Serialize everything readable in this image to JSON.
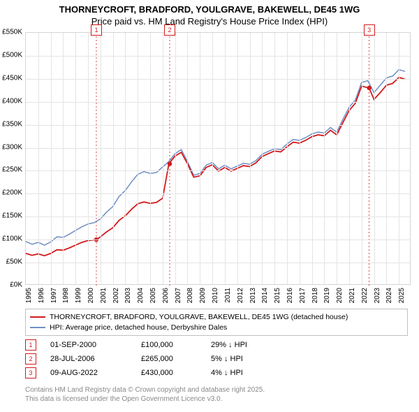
{
  "title_line1": "THORNEYCROFT, BRADFORD, YOULGRAVE, BAKEWELL, DE45 1WG",
  "title_line2": "Price paid vs. HM Land Registry's House Price Index (HPI)",
  "chart": {
    "type": "line",
    "background_color": "#ffffff",
    "grid_color": "#e4e4e4",
    "border_color": "#d4d4d4",
    "xlim": [
      1995,
      2026
    ],
    "ylim": [
      0,
      550
    ],
    "ytick_step": 50,
    "ytick_format": "£{v}K",
    "xticks": [
      1995,
      1996,
      1997,
      1998,
      1999,
      2000,
      2001,
      2002,
      2003,
      2004,
      2005,
      2006,
      2007,
      2008,
      2009,
      2010,
      2011,
      2012,
      2013,
      2014,
      2015,
      2016,
      2017,
      2018,
      2019,
      2020,
      2021,
      2022,
      2023,
      2024,
      2025
    ],
    "series": [
      {
        "id": "hpi",
        "label": "HPI: Average price, detached house, Derbyshire Dales",
        "color": "#6f8fc4",
        "width": 1.5,
        "data": [
          [
            1995,
            96
          ],
          [
            1995.5,
            90
          ],
          [
            1996,
            94
          ],
          [
            1996.5,
            88
          ],
          [
            1997,
            95
          ],
          [
            1997.5,
            106
          ],
          [
            1998,
            105
          ],
          [
            1998.5,
            112
          ],
          [
            1999,
            120
          ],
          [
            1999.5,
            128
          ],
          [
            2000,
            134
          ],
          [
            2000.5,
            137
          ],
          [
            2001,
            145
          ],
          [
            2001.5,
            160
          ],
          [
            2002,
            172
          ],
          [
            2002.5,
            194
          ],
          [
            2003,
            207
          ],
          [
            2003.5,
            226
          ],
          [
            2004,
            242
          ],
          [
            2004.5,
            248
          ],
          [
            2005,
            244
          ],
          [
            2005.5,
            246
          ],
          [
            2006,
            258
          ],
          [
            2006.5,
            270
          ],
          [
            2007,
            287
          ],
          [
            2007.5,
            296
          ],
          [
            2008,
            270
          ],
          [
            2008.5,
            240
          ],
          [
            2009,
            244
          ],
          [
            2009.5,
            262
          ],
          [
            2010,
            268
          ],
          [
            2010.5,
            254
          ],
          [
            2011,
            262
          ],
          [
            2011.5,
            254
          ],
          [
            2012,
            260
          ],
          [
            2012.5,
            266
          ],
          [
            2013,
            264
          ],
          [
            2013.5,
            272
          ],
          [
            2014,
            286
          ],
          [
            2014.5,
            292
          ],
          [
            2015,
            298
          ],
          [
            2015.5,
            296
          ],
          [
            2016,
            308
          ],
          [
            2016.5,
            318
          ],
          [
            2017,
            316
          ],
          [
            2017.5,
            322
          ],
          [
            2018,
            330
          ],
          [
            2018.5,
            334
          ],
          [
            2019,
            332
          ],
          [
            2019.5,
            344
          ],
          [
            2020,
            334
          ],
          [
            2020.5,
            362
          ],
          [
            2021,
            388
          ],
          [
            2021.5,
            404
          ],
          [
            2022,
            442
          ],
          [
            2022.5,
            446
          ],
          [
            2023,
            420
          ],
          [
            2023.5,
            436
          ],
          [
            2024,
            452
          ],
          [
            2024.5,
            456
          ],
          [
            2025,
            470
          ],
          [
            2025.5,
            466
          ]
        ]
      },
      {
        "id": "price_paid",
        "label": "THORNEYCROFT, BRADFORD, YOULGRAVE, BAKEWELL, DE45 1WG (detached house)",
        "color": "#d21a1a",
        "width": 1.8,
        "data": [
          [
            1995,
            70
          ],
          [
            1995.5,
            66
          ],
          [
            1996,
            69
          ],
          [
            1996.5,
            65
          ],
          [
            1997,
            70
          ],
          [
            1997.5,
            78
          ],
          [
            1998,
            77
          ],
          [
            1998.5,
            82
          ],
          [
            1999,
            88
          ],
          [
            1999.5,
            94
          ],
          [
            2000,
            98
          ],
          [
            2000.67,
            100
          ],
          [
            2001,
            106
          ],
          [
            2001.5,
            117
          ],
          [
            2002,
            126
          ],
          [
            2002.5,
            142
          ],
          [
            2003,
            152
          ],
          [
            2003.5,
            166
          ],
          [
            2004,
            178
          ],
          [
            2004.5,
            182
          ],
          [
            2005,
            179
          ],
          [
            2005.5,
            181
          ],
          [
            2006,
            190
          ],
          [
            2006.5,
            265
          ],
          [
            2007,
            282
          ],
          [
            2007.5,
            290
          ],
          [
            2008,
            265
          ],
          [
            2008.5,
            236
          ],
          [
            2009,
            239
          ],
          [
            2009.5,
            257
          ],
          [
            2010,
            263
          ],
          [
            2010.5,
            249
          ],
          [
            2011,
            257
          ],
          [
            2011.5,
            249
          ],
          [
            2012,
            255
          ],
          [
            2012.5,
            261
          ],
          [
            2013,
            259
          ],
          [
            2013.5,
            267
          ],
          [
            2014,
            281
          ],
          [
            2014.5,
            287
          ],
          [
            2015,
            293
          ],
          [
            2015.5,
            291
          ],
          [
            2016,
            302
          ],
          [
            2016.5,
            312
          ],
          [
            2017,
            310
          ],
          [
            2017.5,
            316
          ],
          [
            2018,
            324
          ],
          [
            2018.5,
            328
          ],
          [
            2019,
            326
          ],
          [
            2019.5,
            338
          ],
          [
            2020,
            328
          ],
          [
            2020.5,
            355
          ],
          [
            2021,
            381
          ],
          [
            2021.5,
            397
          ],
          [
            2022,
            434
          ],
          [
            2022.6,
            430
          ],
          [
            2023,
            405
          ],
          [
            2023.5,
            420
          ],
          [
            2024,
            436
          ],
          [
            2024.5,
            440
          ],
          [
            2025,
            453
          ],
          [
            2025.5,
            449
          ]
        ]
      }
    ],
    "sale_markers": [
      {
        "n": "1",
        "x": 2000.67,
        "y": 100,
        "color": "#d21a1a"
      },
      {
        "n": "2",
        "x": 2006.57,
        "y": 265,
        "color": "#d21a1a"
      },
      {
        "n": "3",
        "x": 2022.61,
        "y": 430,
        "color": "#d21a1a"
      }
    ]
  },
  "legend": {
    "items": [
      {
        "color": "#d21a1a",
        "label": "THORNEYCROFT, BRADFORD, YOULGRAVE, BAKEWELL, DE45 1WG (detached house)"
      },
      {
        "color": "#6f8fc4",
        "label": "HPI: Average price, detached house, Derbyshire Dales"
      }
    ]
  },
  "sales": [
    {
      "n": "1",
      "color": "#d21a1a",
      "date": "01-SEP-2000",
      "price": "£100,000",
      "diff": "29% ↓ HPI"
    },
    {
      "n": "2",
      "color": "#d21a1a",
      "date": "28-JUL-2006",
      "price": "£265,000",
      "diff": "5% ↓ HPI"
    },
    {
      "n": "3",
      "color": "#d21a1a",
      "date": "09-AUG-2022",
      "price": "£430,000",
      "diff": "4% ↓ HPI"
    }
  ],
  "attribution_line1": "Contains HM Land Registry data © Crown copyright and database right 2025.",
  "attribution_line2": "This data is licensed under the Open Government Licence v3.0."
}
